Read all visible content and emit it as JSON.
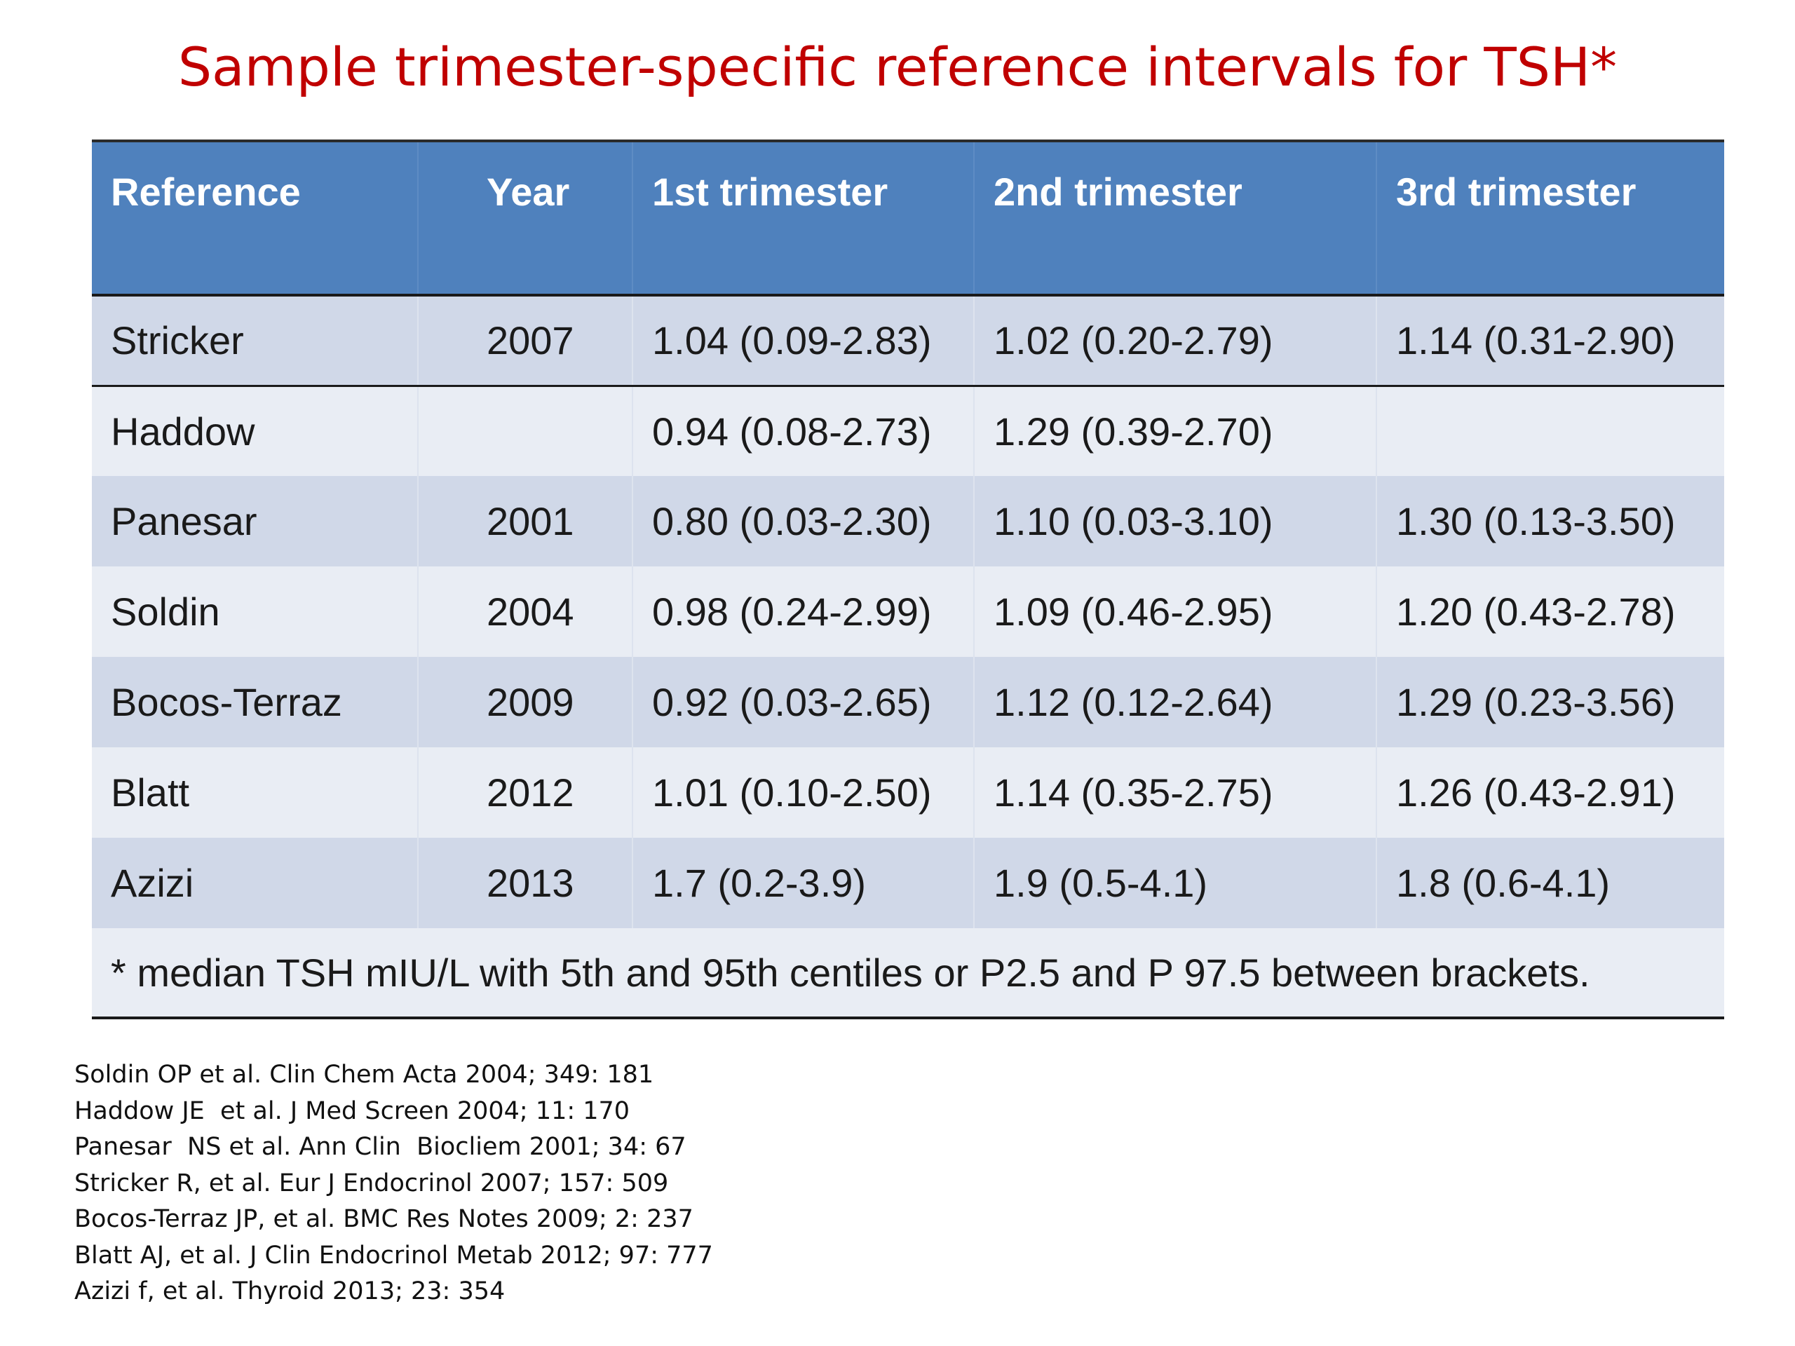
{
  "title": "Sample trimester-specific reference intervals for TSH*",
  "table": {
    "headers": [
      "Reference",
      "Year",
      "1st trimester",
      "2nd trimester",
      "3rd trimester"
    ],
    "rows": [
      [
        "Stricker",
        "2007",
        "1.04  (0.09-2.83)",
        "1.02  (0.20-2.79)",
        "1.14  (0.31-2.90)"
      ],
      [
        "Haddow",
        "",
        "0.94  (0.08-2.73)",
        "1.29  (0.39-2.70)",
        ""
      ],
      [
        "Panesar",
        "2001",
        "0.80 (0.03-2.30)",
        "1.10  (0.03-3.10)",
        "1.30  (0.13-3.50)"
      ],
      [
        "Soldin",
        "2004",
        "0.98 (0.24-2.99)",
        "1.09  (0.46-2.95)",
        "1.20  (0.43-2.78)"
      ],
      [
        "Bocos-Terraz",
        "2009",
        "0.92 (0.03-2.65)",
        "1.12 (0.12-2.64)",
        "1.29  (0.23-3.56)"
      ],
      [
        "Blatt",
        "2012",
        "1.01 (0.10-2.50)",
        "1.14 (0.35-2.75)",
        "1.26 (0.43-2.91)"
      ],
      [
        "Azizi",
        "2013",
        "1.7 (0.2-3.9)",
        "1.9 (0.5-4.1)",
        "1.8 (0.6-4.1)"
      ]
    ],
    "footnote": "* median TSH mIU/L with 5th and 95th centiles or P2.5 and P 97.5 between brackets."
  },
  "references": [
    "Soldin OP et al. Clin Chem Acta 2004; 349: 181",
    "Haddow JE  et al. J Med Screen 2004; 11: 170",
    "Panesar  NS et al. Ann Clin  Biocliem 2001; 34: 67",
    "Stricker R, et al. Eur J Endocrinol 2007; 157: 509",
    "Bocos-Terraz JP, et al. BMC Res Notes 2009; 2: 237",
    "Blatt AJ, et al. J Clin Endocrinol Metab 2012; 97: 777",
    "Azizi f, et al. Thyroid 2013; 23: 354"
  ],
  "colors": {
    "title": "#c00000",
    "header_bg": "#4f81bd",
    "band_row": "#d0d8e8",
    "plain_row": "#e9edf4"
  }
}
